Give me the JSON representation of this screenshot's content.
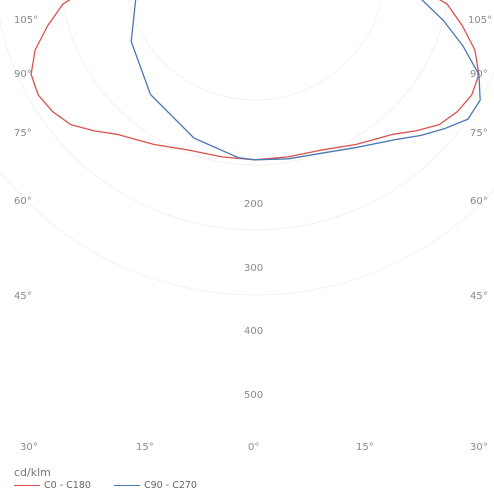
{
  "chart_data": {
    "type": "polar",
    "unit_label": "cd/klm",
    "angle_labels": {
      "left": [
        "105°",
        "90°",
        "75°",
        "60°",
        "45°"
      ],
      "right": [
        "105°",
        "90°",
        "75°",
        "60°",
        "45°"
      ],
      "bottom": [
        "30°",
        "15°",
        "0°",
        "15°",
        "30°"
      ]
    },
    "radial_labels": [
      "200",
      "300",
      "400",
      "500"
    ],
    "series": [
      {
        "name": "C0 - C180",
        "color": "#d9534f",
        "points_deg_cd": [
          [
            -91,
            205
          ],
          [
            -80,
            300
          ],
          [
            -75,
            330
          ],
          [
            -70,
            360
          ],
          [
            -65,
            380
          ],
          [
            -60,
            385
          ],
          [
            -55,
            380
          ],
          [
            -50,
            370
          ],
          [
            -45,
            350
          ],
          [
            -40,
            330
          ],
          [
            -30,
            310
          ],
          [
            -20,
            295
          ],
          [
            -10,
            292
          ],
          [
            0,
            292
          ],
          [
            10,
            292
          ],
          [
            20,
            295
          ],
          [
            30,
            310
          ],
          [
            40,
            330
          ],
          [
            45,
            350
          ],
          [
            50,
            370
          ],
          [
            55,
            380
          ],
          [
            60,
            385
          ],
          [
            65,
            380
          ],
          [
            70,
            360
          ],
          [
            75,
            330
          ],
          [
            80,
            300
          ],
          [
            89,
            210
          ],
          [
            91,
            205
          ]
        ]
      },
      {
        "name": "C90 - C270",
        "color": "#4a78b5",
        "points_deg_cd": [
          [
            -93,
            205
          ],
          [
            -85,
            180
          ],
          [
            -80,
            185
          ],
          [
            -60,
            220
          ],
          [
            -40,
            250
          ],
          [
            -20,
            275
          ],
          [
            -5,
            290
          ],
          [
            0,
            292
          ],
          [
            10,
            295
          ],
          [
            20,
            300
          ],
          [
            30,
            315
          ],
          [
            40,
            340
          ],
          [
            45,
            360
          ],
          [
            50,
            380
          ],
          [
            55,
            400
          ],
          [
            60,
            400
          ],
          [
            65,
            380
          ],
          [
            70,
            340
          ],
          [
            75,
            300
          ],
          [
            80,
            260
          ],
          [
            85,
            230
          ],
          [
            90,
            210
          ],
          [
            93,
            205
          ]
        ]
      }
    ]
  }
}
